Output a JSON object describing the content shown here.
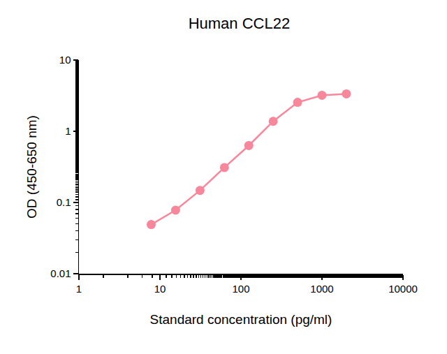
{
  "chart_data": {
    "type": "line",
    "title": "Human CCL22",
    "x_label": "Standard concentration (pg/ml)",
    "y_label": "OD (450-650 nm)",
    "x": [
      7.8,
      15.6,
      31.25,
      62.5,
      125,
      250,
      500,
      1000,
      2000
    ],
    "series": [
      {
        "name": "Human CCL22",
        "color": "#f7879b",
        "values": [
          0.049,
          0.078,
          0.148,
          0.31,
          0.63,
          1.38,
          2.55,
          3.2,
          3.35
        ]
      }
    ],
    "xlim": [
      1,
      10000
    ],
    "xticks": [
      1,
      10,
      100,
      1000,
      10000
    ],
    "ylim": [
      0.01,
      10
    ],
    "yticks": [
      0.01,
      0.1,
      1,
      10
    ],
    "log": true,
    "grid": false,
    "marker": "circle",
    "line_style": "solid"
  }
}
